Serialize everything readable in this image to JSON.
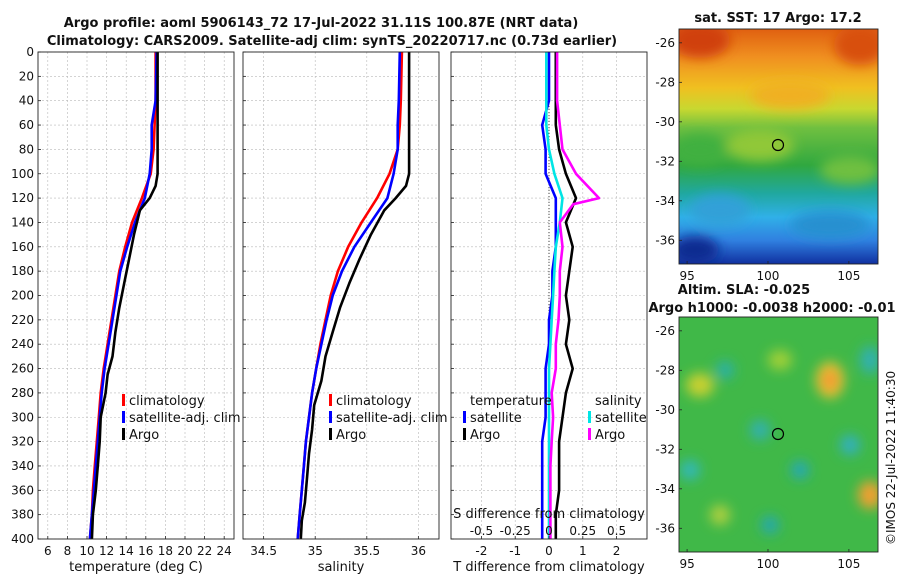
{
  "title": {
    "line1": "Argo profile: aoml 5906143_72 17-Jul-2022 31.11S 100.87E (NRT data)",
    "line2": "Climatology: CARS2009. Satellite-adj clim: synTS_20220717.nc (0.73d earlier)"
  },
  "watermark": "©IMOS 22-Jul-2022 11:40:30",
  "colors": {
    "climatology": "#ff0000",
    "satellite": "#0000ff",
    "argo": "#000000",
    "sat_salinity": "#00e5e5",
    "argo_salinity": "#ff00ff"
  },
  "chart_data": [
    {
      "type": "line",
      "name": "temperature-profile",
      "xlabel": "temperature (deg C)",
      "ylabel": "depth",
      "xlim": [
        5,
        25
      ],
      "ylim": [
        400,
        0
      ],
      "xticks": [
        6,
        8,
        10,
        12,
        14,
        16,
        18,
        20,
        22,
        24
      ],
      "yticks": [
        0,
        20,
        40,
        60,
        80,
        100,
        120,
        140,
        160,
        180,
        200,
        220,
        240,
        260,
        280,
        300,
        320,
        340,
        360,
        380,
        400
      ],
      "legend": [
        "climatology",
        "satellite-adj. clim",
        "Argo"
      ],
      "series": [
        {
          "name": "climatology",
          "points": [
            [
              17.0,
              0
            ],
            [
              17.0,
              40
            ],
            [
              16.9,
              60
            ],
            [
              16.8,
              80
            ],
            [
              16.5,
              100
            ],
            [
              15.6,
              120
            ],
            [
              14.6,
              140
            ],
            [
              13.9,
              160
            ],
            [
              13.3,
              180
            ],
            [
              12.9,
              200
            ],
            [
              12.5,
              220
            ],
            [
              12.1,
              240
            ],
            [
              11.7,
              260
            ],
            [
              11.4,
              280
            ],
            [
              11.2,
              300
            ],
            [
              11.0,
              320
            ],
            [
              10.8,
              340
            ],
            [
              10.6,
              360
            ],
            [
              10.5,
              380
            ],
            [
              10.3,
              400
            ]
          ]
        },
        {
          "name": "satellite-adj. clim",
          "points": [
            [
              17.1,
              0
            ],
            [
              17.0,
              40
            ],
            [
              16.6,
              60
            ],
            [
              16.6,
              80
            ],
            [
              16.4,
              100
            ],
            [
              15.9,
              120
            ],
            [
              14.9,
              140
            ],
            [
              14.1,
              160
            ],
            [
              13.4,
              180
            ],
            [
              13.0,
              200
            ],
            [
              12.6,
              220
            ],
            [
              12.2,
              240
            ],
            [
              11.8,
              260
            ],
            [
              11.5,
              280
            ],
            [
              11.3,
              300
            ],
            [
              11.1,
              320
            ],
            [
              10.9,
              340
            ],
            [
              10.7,
              360
            ],
            [
              10.5,
              380
            ],
            [
              10.3,
              400
            ]
          ]
        },
        {
          "name": "Argo",
          "points": [
            [
              17.2,
              0
            ],
            [
              17.2,
              40
            ],
            [
              17.2,
              60
            ],
            [
              17.2,
              80
            ],
            [
              17.2,
              100
            ],
            [
              17.0,
              110
            ],
            [
              16.4,
              120
            ],
            [
              15.4,
              130
            ],
            [
              14.8,
              150
            ],
            [
              14.3,
              170
            ],
            [
              13.8,
              190
            ],
            [
              13.3,
              210
            ],
            [
              12.9,
              230
            ],
            [
              12.6,
              250
            ],
            [
              12.1,
              265
            ],
            [
              11.9,
              280
            ],
            [
              11.4,
              300
            ],
            [
              11.3,
              320
            ],
            [
              11.1,
              340
            ],
            [
              10.9,
              360
            ],
            [
              10.6,
              380
            ],
            [
              10.5,
              400
            ]
          ]
        }
      ]
    },
    {
      "type": "line",
      "name": "salinity-profile",
      "xlabel": "salinity",
      "ylabel": "depth",
      "xlim": [
        34.3,
        36.2
      ],
      "ylim": [
        400,
        0
      ],
      "xticks": [
        34.5,
        35,
        35.5,
        36
      ],
      "xticklabels": [
        "34.5",
        "35",
        "35.5",
        "36"
      ],
      "legend": [
        "climatology",
        "satellite-adj. clim",
        "Argo"
      ],
      "series": [
        {
          "name": "climatology",
          "points": [
            [
              35.84,
              0
            ],
            [
              35.83,
              40
            ],
            [
              35.82,
              60
            ],
            [
              35.8,
              80
            ],
            [
              35.72,
              100
            ],
            [
              35.6,
              120
            ],
            [
              35.45,
              140
            ],
            [
              35.32,
              160
            ],
            [
              35.22,
              180
            ],
            [
              35.15,
              200
            ],
            [
              35.1,
              220
            ],
            [
              35.05,
              240
            ],
            [
              35.01,
              260
            ],
            [
              34.97,
              280
            ],
            [
              34.94,
              300
            ],
            [
              34.91,
              320
            ],
            [
              34.89,
              340
            ],
            [
              34.87,
              360
            ],
            [
              34.85,
              380
            ],
            [
              34.83,
              400
            ]
          ]
        },
        {
          "name": "satellite-adj. clim",
          "points": [
            [
              35.82,
              0
            ],
            [
              35.81,
              40
            ],
            [
              35.8,
              60
            ],
            [
              35.8,
              80
            ],
            [
              35.76,
              100
            ],
            [
              35.7,
              120
            ],
            [
              35.54,
              140
            ],
            [
              35.38,
              160
            ],
            [
              35.26,
              180
            ],
            [
              35.17,
              200
            ],
            [
              35.11,
              220
            ],
            [
              35.06,
              240
            ],
            [
              35.01,
              260
            ],
            [
              34.97,
              280
            ],
            [
              34.94,
              300
            ],
            [
              34.91,
              320
            ],
            [
              34.89,
              340
            ],
            [
              34.87,
              360
            ],
            [
              34.85,
              380
            ],
            [
              34.83,
              400
            ]
          ]
        },
        {
          "name": "Argo",
          "points": [
            [
              35.91,
              0
            ],
            [
              35.91,
              40
            ],
            [
              35.91,
              60
            ],
            [
              35.91,
              80
            ],
            [
              35.91,
              100
            ],
            [
              35.88,
              110
            ],
            [
              35.78,
              120
            ],
            [
              35.67,
              130
            ],
            [
              35.54,
              150
            ],
            [
              35.43,
              170
            ],
            [
              35.33,
              190
            ],
            [
              35.24,
              210
            ],
            [
              35.17,
              230
            ],
            [
              35.1,
              250
            ],
            [
              35.06,
              270
            ],
            [
              34.99,
              290
            ],
            [
              34.97,
              310
            ],
            [
              34.94,
              330
            ],
            [
              34.92,
              350
            ],
            [
              34.9,
              370
            ],
            [
              34.87,
              385
            ],
            [
              34.86,
              400
            ]
          ]
        }
      ]
    },
    {
      "type": "line",
      "name": "difference-profile",
      "xlabel": "T difference from climatology",
      "xlabel_top": "S difference from climatology",
      "ylabel": "depth",
      "xlim": [
        -2.9,
        2.9
      ],
      "xticks": [
        -2,
        -1,
        0,
        1,
        2
      ],
      "xticklabels": [
        "-2",
        "-1",
        "0",
        "1",
        "2"
      ],
      "top_xticks": [
        -0.5,
        -0.25,
        0,
        0.25,
        0.5
      ],
      "top_xticklabels": [
        "-0.5",
        "-0.25",
        "0",
        "0.25",
        "0.5"
      ],
      "legend_temperature_title": "temperature",
      "legend_salinity_title": "salinity",
      "legend_temperature": [
        "satellite",
        "Argo"
      ],
      "legend_salinity": [
        "satellite",
        "Argo"
      ],
      "series": [
        {
          "name": "T satellite",
          "points": [
            [
              0.0,
              0
            ],
            [
              0.0,
              40
            ],
            [
              -0.2,
              60
            ],
            [
              -0.1,
              80
            ],
            [
              -0.1,
              100
            ],
            [
              0.2,
              120
            ],
            [
              0.2,
              140
            ],
            [
              0.2,
              160
            ],
            [
              0.1,
              180
            ],
            [
              0.1,
              200
            ],
            [
              0.0,
              220
            ],
            [
              0.0,
              240
            ],
            [
              -0.1,
              260
            ],
            [
              -0.1,
              280
            ],
            [
              -0.1,
              300
            ],
            [
              -0.2,
              320
            ],
            [
              -0.2,
              340
            ],
            [
              -0.2,
              360
            ],
            [
              -0.2,
              380
            ],
            [
              -0.2,
              400
            ]
          ]
        },
        {
          "name": "T Argo",
          "points": [
            [
              0.2,
              0
            ],
            [
              0.2,
              40
            ],
            [
              0.2,
              60
            ],
            [
              0.3,
              80
            ],
            [
              0.5,
              100
            ],
            [
              0.8,
              120
            ],
            [
              0.5,
              140
            ],
            [
              0.7,
              160
            ],
            [
              0.6,
              180
            ],
            [
              0.5,
              200
            ],
            [
              0.6,
              220
            ],
            [
              0.5,
              240
            ],
            [
              0.7,
              260
            ],
            [
              0.5,
              280
            ],
            [
              0.4,
              300
            ],
            [
              0.3,
              320
            ],
            [
              0.3,
              340
            ],
            [
              0.3,
              360
            ],
            [
              0.2,
              380
            ],
            [
              0.2,
              400
            ]
          ]
        },
        {
          "name": "S satellite",
          "points": [
            [
              -0.02,
              0
            ],
            [
              -0.02,
              40
            ],
            [
              -0.02,
              60
            ],
            [
              0.0,
              80
            ],
            [
              0.04,
              100
            ],
            [
              0.1,
              120
            ],
            [
              0.08,
              140
            ],
            [
              0.05,
              160
            ],
            [
              0.04,
              180
            ],
            [
              0.03,
              200
            ],
            [
              0.02,
              220
            ],
            [
              0.01,
              240
            ],
            [
              0.0,
              260
            ],
            [
              0.0,
              280
            ],
            [
              0.0,
              300
            ],
            [
              0.0,
              320
            ],
            [
              0.0,
              340
            ],
            [
              0.0,
              360
            ],
            [
              0.0,
              380
            ],
            [
              0.0,
              400
            ]
          ]
        },
        {
          "name": "S Argo",
          "points": [
            [
              0.06,
              0
            ],
            [
              0.06,
              40
            ],
            [
              0.08,
              60
            ],
            [
              0.1,
              80
            ],
            [
              0.2,
              100
            ],
            [
              0.37,
              120
            ],
            [
              0.18,
              125
            ],
            [
              0.08,
              140
            ],
            [
              0.1,
              160
            ],
            [
              0.08,
              180
            ],
            [
              0.08,
              200
            ],
            [
              0.07,
              220
            ],
            [
              0.05,
              240
            ],
            [
              0.05,
              260
            ],
            [
              0.02,
              280
            ],
            [
              0.03,
              300
            ],
            [
              0.02,
              320
            ],
            [
              0.01,
              340
            ],
            [
              0.01,
              360
            ],
            [
              0.01,
              380
            ],
            [
              0.01,
              400
            ]
          ]
        }
      ]
    },
    {
      "type": "heatmap",
      "name": "sat-sst-map",
      "title": "sat. SST: 17 Argo: 17.2",
      "xlim": [
        94.5,
        106.8
      ],
      "ylim": [
        -37.2,
        -25.3
      ],
      "xticks": [
        95,
        100,
        105
      ],
      "yticks": [
        -26,
        -28,
        -30,
        -32,
        -34,
        -36
      ],
      "marker": [
        100.87,
        -31.11
      ]
    },
    {
      "type": "heatmap",
      "name": "altim-sla-map",
      "title1": "Altim. SLA: -0.025",
      "title2": "Argo h1000: -0.0038 h2000: -0.01",
      "xlim": [
        94.5,
        106.8
      ],
      "ylim": [
        -37.2,
        -25.3
      ],
      "xticks": [
        95,
        100,
        105
      ],
      "yticks": [
        -26,
        -28,
        -30,
        -32,
        -34,
        -36
      ],
      "marker": [
        100.87,
        -31.11
      ]
    }
  ]
}
